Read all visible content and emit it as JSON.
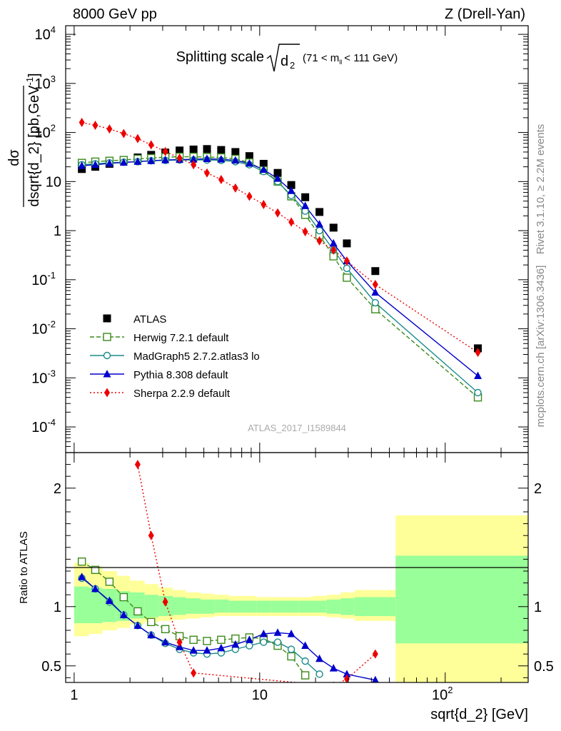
{
  "header": {
    "left": "8000 GeV pp",
    "right": "Z (Drell-Yan)"
  },
  "side_text": {
    "rivet": "Rivet 3.1.10, ≥ 2.2M events",
    "mcplots": "mcplots.cern.ch [arXiv:1306.3436]"
  },
  "watermark": "ATLAS_2017_I1589844",
  "colors": {
    "atlas": "#000000",
    "herwig": "#3a8a1a",
    "madgraph": "#1a8a8a",
    "pythia": "#0000cc",
    "sherpa": "#ee0000",
    "band_inner": "#99ff99",
    "band_outer": "#ffff99"
  },
  "chart_data": [
    {
      "type": "scatter",
      "title": "Splitting scale √d₂ (71 < mₗₗ < 111 GeV)",
      "title_main": "Splitting scale",
      "title_sub": "(71 < m",
      "title_sub2": "< 111 GeV)",
      "ylabel": "dσ / dsqrt{d_2} [pb,GeV⁻¹]",
      "ylabel_num": "dσ",
      "ylabel_den": "dsqrt{d_2} [pb,GeV",
      "ylabel_sup": "-1",
      "ylabel_close": "]",
      "yscale": "log",
      "xscale": "log",
      "xlim": [
        0.9,
        280
      ],
      "ylim": [
        3e-05,
        15000
      ],
      "yticks": [
        {
          "v": 0.0001,
          "label": "10",
          "sup": "-4"
        },
        {
          "v": 0.001,
          "label": "10",
          "sup": "-3"
        },
        {
          "v": 0.01,
          "label": "10",
          "sup": "-2"
        },
        {
          "v": 0.1,
          "label": "10",
          "sup": "-1"
        },
        {
          "v": 1,
          "label": "1",
          "sup": ""
        },
        {
          "v": 10,
          "label": "10",
          "sup": ""
        },
        {
          "v": 100,
          "label": "10",
          "sup": "2"
        },
        {
          "v": 1000,
          "label": "10",
          "sup": "3"
        },
        {
          "v": 10000,
          "label": "10",
          "sup": "4"
        }
      ],
      "legend_position": "bottom-left",
      "series": [
        {
          "name": "ATLAS",
          "key": "atlas",
          "marker": "square-filled",
          "x": [
            1.1,
            1.3,
            1.55,
            1.85,
            2.2,
            2.6,
            3.1,
            3.7,
            4.4,
            5.2,
            6.2,
            7.4,
            8.8,
            10.5,
            12.5,
            14.8,
            17.6,
            21,
            25,
            29.5,
            42,
            150
          ],
          "y": [
            18,
            20,
            23,
            27,
            31,
            35,
            39,
            43,
            45,
            46,
            44,
            40,
            33,
            23,
            15,
            8.5,
            4.8,
            2.4,
            1.15,
            0.55,
            0.15,
            0.004
          ]
        },
        {
          "name": "Herwig 7.2.1 default",
          "key": "herwig",
          "marker": "square-open",
          "line": "dashed",
          "x": [
            1.1,
            1.3,
            1.55,
            1.85,
            2.2,
            2.6,
            3.1,
            3.7,
            4.4,
            5.2,
            6.2,
            7.4,
            8.8,
            10.5,
            12.5,
            14.8,
            17.6,
            21,
            25,
            29.5,
            42,
            150
          ],
          "y": [
            24,
            25.5,
            26.5,
            27.5,
            29,
            30,
            31.5,
            32,
            32,
            31.5,
            31,
            29,
            24.5,
            17,
            10,
            5,
            2.1,
            0.8,
            0.3,
            0.11,
            0.025,
            0.0004
          ]
        },
        {
          "name": "MadGraph5 2.7.2.atlas3 lo",
          "key": "madgraph",
          "marker": "circle-open",
          "line": "solid",
          "x": [
            1.1,
            1.3,
            1.55,
            1.85,
            2.2,
            2.6,
            3.1,
            3.7,
            4.4,
            5.2,
            6.2,
            7.4,
            8.8,
            10.5,
            12.5,
            14.8,
            17.6,
            21,
            25,
            29.5,
            42,
            150
          ],
          "y": [
            22,
            23,
            24,
            24.8,
            25.5,
            26.5,
            27,
            27.5,
            27.5,
            27.5,
            27,
            25.5,
            22,
            16,
            10,
            5.2,
            2.5,
            1,
            0.4,
            0.17,
            0.034,
            0.0005
          ]
        },
        {
          "name": "Pythia 8.308 default",
          "key": "pythia",
          "marker": "triangle-filled",
          "line": "solid",
          "x": [
            1.1,
            1.3,
            1.55,
            1.85,
            2.2,
            2.6,
            3.1,
            3.7,
            4.4,
            5.2,
            6.2,
            7.4,
            8.8,
            10.5,
            12.5,
            14.8,
            17.6,
            21,
            25,
            29.5,
            42,
            150
          ],
          "y": [
            21,
            22,
            23.5,
            24.5,
            25.5,
            26.5,
            27.5,
            28,
            28.5,
            29,
            28.5,
            27,
            23.5,
            17.5,
            11.5,
            6.5,
            3.2,
            1.35,
            0.55,
            0.24,
            0.055,
            0.0011
          ]
        },
        {
          "name": "Sherpa 2.2.9 default",
          "key": "sherpa",
          "marker": "diamond-filled",
          "line": "dotted",
          "x": [
            1.1,
            1.3,
            1.55,
            1.85,
            2.2,
            2.6,
            3.1,
            3.7,
            4.4,
            5.2,
            6.2,
            7.4,
            8.8,
            10.5,
            12.5,
            14.8,
            17.6,
            21,
            25,
            29.5,
            42,
            150
          ],
          "y": [
            160,
            140,
            118,
            95,
            75,
            56,
            41,
            30,
            22,
            15,
            11,
            7.4,
            5,
            3.4,
            2.3,
            1.5,
            0.95,
            0.62,
            0.4,
            0.24,
            0.08,
            0.0033
          ]
        }
      ]
    },
    {
      "type": "scatter",
      "title": "",
      "ylabel": "Ratio to ATLAS",
      "xlabel": "sqrt{d_2} [GeV]",
      "xscale": "log",
      "xlim": [
        0.9,
        280
      ],
      "ylim": [
        0.36,
        2.3
      ],
      "yticks": [
        {
          "v": 0.5,
          "label": "0.5"
        },
        {
          "v": 1,
          "label": "1"
        },
        {
          "v": 2,
          "label": "2"
        }
      ],
      "xticks": [
        {
          "v": 1,
          "label": "1",
          "sup": ""
        },
        {
          "v": 10,
          "label": "10",
          "sup": ""
        },
        {
          "v": 100,
          "label": "10",
          "sup": "2"
        }
      ],
      "bands": {
        "edges": [
          1,
          1.2,
          1.42,
          1.7,
          2,
          2.4,
          2.85,
          3.4,
          4,
          4.8,
          5.7,
          6.8,
          8.1,
          9.6,
          11.5,
          13.6,
          16.2,
          19.3,
          23,
          27.3,
          32.5,
          54,
          280
        ],
        "inner_lo": [
          0.86,
          0.86,
          0.87,
          0.88,
          0.9,
          0.91,
          0.92,
          0.93,
          0.94,
          0.94,
          0.95,
          0.95,
          0.95,
          0.95,
          0.95,
          0.95,
          0.95,
          0.95,
          0.94,
          0.93,
          0.92,
          0.69
        ],
        "inner_hi": [
          1.17,
          1.16,
          1.15,
          1.13,
          1.12,
          1.1,
          1.09,
          1.08,
          1.07,
          1.06,
          1.06,
          1.05,
          1.05,
          1.05,
          1.05,
          1.05,
          1.05,
          1.05,
          1.06,
          1.07,
          1.08,
          1.43
        ],
        "outer_lo": [
          0.75,
          0.77,
          0.8,
          0.82,
          0.85,
          0.87,
          0.88,
          0.89,
          0.9,
          0.91,
          0.92,
          0.92,
          0.92,
          0.92,
          0.92,
          0.92,
          0.92,
          0.92,
          0.91,
          0.9,
          0.88,
          0.36
        ],
        "outer_hi": [
          1.37,
          1.34,
          1.3,
          1.26,
          1.22,
          1.19,
          1.16,
          1.14,
          1.12,
          1.11,
          1.1,
          1.09,
          1.09,
          1.08,
          1.08,
          1.08,
          1.08,
          1.09,
          1.1,
          1.12,
          1.14,
          1.77
        ]
      },
      "series": [
        {
          "name": "Herwig 7.2.1 default",
          "key": "herwig",
          "marker": "square-open",
          "line": "dashed",
          "x": [
            1.1,
            1.3,
            1.55,
            1.85,
            2.2,
            2.6,
            3.1,
            3.7,
            4.4,
            5.2,
            6.2,
            7.4,
            8.8,
            10.5,
            12.5,
            14.8,
            17.6
          ],
          "y": [
            1.38,
            1.31,
            1.21,
            1.08,
            0.96,
            0.87,
            0.81,
            0.75,
            0.72,
            0.71,
            0.72,
            0.73,
            0.74,
            0.73,
            0.67,
            0.58,
            0.42
          ]
        },
        {
          "name": "MadGraph5 2.7.2.atlas3 lo",
          "key": "madgraph",
          "marker": "circle-open",
          "line": "solid",
          "x": [
            1.1,
            1.3,
            1.55,
            1.85,
            2.2,
            2.6,
            3.1,
            3.7,
            4.4,
            5.2,
            6.2,
            7.4,
            8.8,
            10.5,
            12.5,
            14.8,
            17.6,
            21
          ],
          "y": [
            1.24,
            1.15,
            1.04,
            0.93,
            0.84,
            0.76,
            0.69,
            0.64,
            0.61,
            0.6,
            0.61,
            0.64,
            0.67,
            0.7,
            0.7,
            0.64,
            0.54,
            0.43
          ]
        },
        {
          "name": "Pythia 8.308 default",
          "key": "pythia",
          "marker": "triangle-filled",
          "line": "solid",
          "x": [
            1.1,
            1.3,
            1.55,
            1.85,
            2.2,
            2.6,
            3.1,
            3.7,
            4.4,
            5.2,
            6.2,
            7.4,
            8.8,
            10.5,
            12.5,
            14.8,
            17.6,
            21,
            25,
            29.5,
            42
          ],
          "y": [
            1.25,
            1.15,
            1.05,
            0.93,
            0.84,
            0.76,
            0.7,
            0.66,
            0.63,
            0.63,
            0.65,
            0.68,
            0.72,
            0.77,
            0.78,
            0.77,
            0.67,
            0.56,
            0.48,
            0.43,
            0.38
          ]
        },
        {
          "name": "Sherpa 2.2.9 default",
          "key": "sherpa",
          "marker": "diamond-filled",
          "line": "dotted",
          "x": [
            2.2,
            2.6,
            3.1,
            3.7,
            4.4,
            25,
            29.5,
            42
          ],
          "y": [
            2.2,
            1.6,
            1.04,
            0.7,
            0.44,
            0.33,
            0.39,
            0.6
          ]
        }
      ]
    }
  ]
}
